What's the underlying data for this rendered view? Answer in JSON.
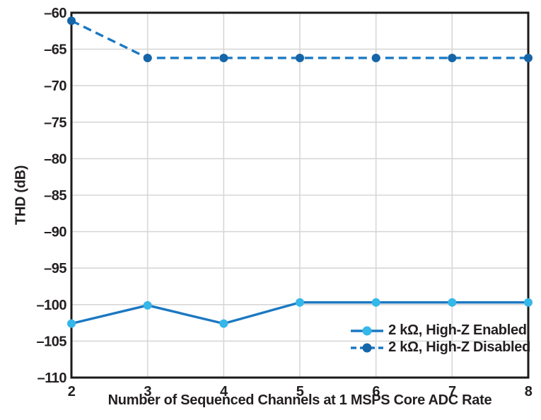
{
  "colors": {
    "background": "#FFFFFF",
    "text": "#231F20",
    "grid": "#D7D7D7",
    "frame": "#1A1A1A"
  },
  "chart_data": {
    "type": "line",
    "title": "",
    "xlabel": "Number of Sequenced Channels at 1 MSPS Core ADC Rate",
    "ylabel": "THD (dB)",
    "x": [
      2,
      3,
      4,
      5,
      6,
      7,
      8
    ],
    "xlim": [
      2,
      8
    ],
    "ylim": [
      -110,
      -60
    ],
    "xticks": [
      2,
      3,
      4,
      5,
      6,
      7,
      8
    ],
    "yticks": [
      -60,
      -65,
      -70,
      -75,
      -80,
      -85,
      -90,
      -95,
      -100,
      -105,
      -110
    ],
    "grid": true,
    "legend_position": "inside-bottom-right",
    "series": [
      {
        "name": "2 kΩ, High-Z Enabled",
        "line_style": "solid",
        "line_color": "#1B78C2",
        "marker_color": "#35B7E9",
        "values": [
          -102.6,
          -100.1,
          -102.6,
          -99.7,
          -99.7,
          -99.7,
          -99.7
        ]
      },
      {
        "name": "2 kΩ, High-Z Disabled",
        "line_style": "dashed",
        "line_color": "#1B78C2",
        "marker_color": "#1565A8",
        "values": [
          -61.1,
          -66.2,
          -66.2,
          -66.2,
          -66.2,
          -66.2,
          -66.2
        ]
      }
    ]
  }
}
